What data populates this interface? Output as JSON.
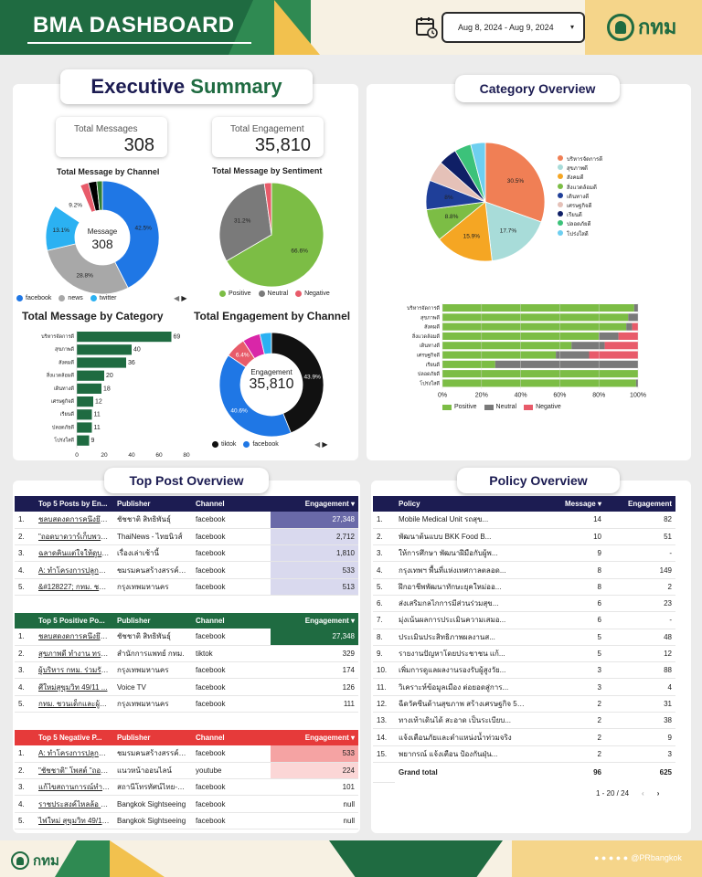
{
  "header": {
    "title": "BMA DASHBOARD",
    "date_range": "Aug 8, 2024 - Aug 9, 2024",
    "logo_text": "กทม"
  },
  "executive": {
    "title_a": "Executive",
    "title_b": "Summary",
    "kpis": [
      {
        "label": "Total Messages",
        "value": "308"
      },
      {
        "label": "Total Engagement",
        "value": "35,810"
      }
    ]
  },
  "colors": {
    "facebook": "#1f77e5",
    "news": "#a8a8a8",
    "twitter": "#2bb1f2",
    "positive": "#7cbd45",
    "neutral": "#7a7a7a",
    "negative": "#e85b6a",
    "dark_green": "#1f6b41",
    "navy": "#1c1c52"
  },
  "chart_data": [
    {
      "type": "pie",
      "title": "Total Message by Channel",
      "center_label": "Message",
      "center_value": "308",
      "slices": [
        {
          "name": "facebook",
          "value": 42.5,
          "color": "#1f77e5"
        },
        {
          "name": "news",
          "value": 28.8,
          "color": "#a8a8a8"
        },
        {
          "name": "twitter",
          "value": 13.1,
          "color": "#2bb1f2"
        },
        {
          "name": "",
          "value": 9.2,
          "color": "#ffffff"
        },
        {
          "name": "",
          "value": 2.4,
          "color": "#e85b6a"
        },
        {
          "name": "",
          "value": 2.4,
          "color": "#000000"
        },
        {
          "name": "",
          "value": 1.6,
          "color": "#2e7d32"
        }
      ],
      "labels": [
        "42.5%",
        "28.8%",
        "13.1%",
        "9.2%"
      ],
      "legend": [
        "facebook",
        "news",
        "twitter"
      ]
    },
    {
      "type": "pie",
      "title": "Total Message by Sentiment",
      "slices": [
        {
          "name": "Positive",
          "value": 66.6,
          "color": "#7cbd45"
        },
        {
          "name": "Neutral",
          "value": 31.2,
          "color": "#7a7a7a"
        },
        {
          "name": "Negative",
          "value": 2.2,
          "color": "#e85b6a"
        }
      ],
      "labels": [
        "66.6%",
        "31.2%"
      ],
      "legend": [
        "Positive",
        "Neutral",
        "Negative"
      ]
    },
    {
      "type": "bar",
      "title": "Total Message by Category",
      "categories": [
        "บริหารจัดการดี",
        "สุขภาพดี",
        "สังคมดี",
        "สิ่งแวดล้อมดี",
        "เดินทางดี",
        "เศรษฐกิจดี",
        "เรียนดี",
        "ปลอดภัยดี",
        "โปร่งใสดี"
      ],
      "values": [
        69,
        40,
        36,
        20,
        18,
        12,
        11,
        11,
        9
      ],
      "xticks": [
        "0",
        "20",
        "40",
        "60",
        "80"
      ],
      "xlim": [
        0,
        80
      ]
    },
    {
      "type": "pie",
      "title": "Total Engagement by Channel",
      "center_label": "Engagement",
      "center_value": "35,810",
      "slices": [
        {
          "name": "tiktok",
          "value": 43.9,
          "color": "#111111"
        },
        {
          "name": "facebook",
          "value": 40.6,
          "color": "#1f77e5"
        },
        {
          "name": "",
          "value": 6.4,
          "color": "#e85b6a"
        },
        {
          "name": "",
          "value": 5.5,
          "color": "#d926a8"
        },
        {
          "name": "",
          "value": 3.6,
          "color": "#2bb1f2"
        }
      ],
      "labels": [
        "43.9%",
        "40.6%",
        "6.4%"
      ],
      "legend": [
        "tiktok",
        "facebook"
      ]
    },
    {
      "type": "pie",
      "title": "Category Overview",
      "slices": [
        {
          "name": "บริหารจัดการดี",
          "value": 30.5,
          "color": "#f07f55"
        },
        {
          "name": "สุขภาพดี",
          "value": 17.7,
          "color": "#a8dcd9"
        },
        {
          "name": "สังคมดี",
          "value": 15.9,
          "color": "#f5a623"
        },
        {
          "name": "สิ่งแวดล้อมดี",
          "value": 8.8,
          "color": "#7cbd45"
        },
        {
          "name": "เดินทางดี",
          "value": 8.0,
          "color": "#1f3f99"
        },
        {
          "name": "เศรษฐกิจดี",
          "value": 5.6,
          "color": "#e5c1b8"
        },
        {
          "name": "เรียนดี",
          "value": 5.0,
          "color": "#0f1f66"
        },
        {
          "name": "ปลอดภัยดี",
          "value": 4.5,
          "color": "#3cc27a"
        },
        {
          "name": "โปร่งใสดี",
          "value": 4.0,
          "color": "#6ecff0"
        }
      ],
      "labels": [
        "30.5%",
        "17.7%",
        "15.9%",
        "8.8%",
        "8%"
      ]
    },
    {
      "type": "bar",
      "stacked": true,
      "categories": [
        "บริหารจัดการดี",
        "สุขภาพดี",
        "สังคมดี",
        "สิ่งแวดล้อมดี",
        "เดินทางดี",
        "เศรษฐกิจดี",
        "เรียนดี",
        "ปลอดภัยดี",
        "โปร่งใสดี"
      ],
      "series": [
        {
          "name": "Positive",
          "values": [
            98,
            95,
            94,
            80,
            66,
            58,
            27,
            100,
            99
          ]
        },
        {
          "name": "Neutral",
          "values": [
            2,
            5,
            3,
            10,
            17,
            17,
            73,
            0,
            1
          ]
        },
        {
          "name": "Negative",
          "values": [
            0,
            0,
            3,
            10,
            17,
            25,
            0,
            0,
            0
          ]
        }
      ],
      "xticks": [
        "0%",
        "20%",
        "40%",
        "60%",
        "80%",
        "100%"
      ],
      "xlim": [
        0,
        100
      ]
    }
  ],
  "category_overview": {
    "title": "Category Overview"
  },
  "top_post": {
    "title": "Top Post Overview"
  },
  "policy": {
    "title": "Policy Overview"
  },
  "top5_posts": {
    "headers": [
      "Top 5 Posts by En...",
      "Publisher",
      "Channel",
      "Engagement"
    ],
    "rows": [
      [
        "1.",
        "ชลบสดงดการคนึงยึดกันพ้อดลาร",
        "ชัชชาติ สิทธิพันธุ์",
        "facebook",
        "27,348"
      ],
      [
        "2.",
        "\"ถอดบาดวาร์เก็บพวราร\" \"ชัชชาต...",
        "ThaiNews - ไทยนิวส์",
        "facebook",
        "2,712"
      ],
      [
        "3.",
        "ฉลาดคินแต่ใจให้ดูบดคำยับได้ประ...",
        "เรื่องเล่าเช้านี้",
        "facebook",
        "1,810"
      ],
      [
        "4.",
        "A: ทำโครงการปลูกต้นไม้ล้าน...",
        "ชมรมคนสร้างสรรค์ไทยแผ่นฟูหู่",
        "facebook",
        "533"
      ],
      [
        "5.",
        "&#128227; กทม. ชวนร่ว...",
        "กรุงเทพมหานคร",
        "facebook",
        "513"
      ]
    ]
  },
  "top5_positive": {
    "headers": [
      "Top 5 Positive Po...",
      "Publisher",
      "Channel",
      "Engagement"
    ],
    "rows": [
      [
        "1.",
        "ชลบสดงดการคนึงยึดกันพ้อดลาร",
        "ชัชชาติ สิทธิพันธุ์",
        "facebook",
        "27,348"
      ],
      [
        "2.",
        "สุขภาพดี ทำงาน ทรงงาน...",
        "สำนักการแพทย์ กทม.",
        "tiktok",
        "329"
      ],
      [
        "3.",
        "ผู้บริหาร กทม. ร่วมรับฟังข้อเสนอ...",
        "กรุงเทพมหานคร",
        "facebook",
        "174"
      ],
      [
        "4.",
        "ศีใหม่สุขุมวิท 49/11 ...",
        "Voice TV",
        "facebook",
        "126"
      ],
      [
        "5.",
        "กทม. ชวนเด็กและผู้ปกครองร่วม...",
        "กรุงเทพมหานคร",
        "facebook",
        "111"
      ]
    ]
  },
  "top5_negative": {
    "headers": [
      "Top 5 Negative P...",
      "Publisher",
      "Channel",
      "Engagement"
    ],
    "rows": [
      [
        "1.",
        "A: ทำโครงการปลูกต้นไม้ล้าน...",
        "ชมรมคนสร้างสรรค์ไทยแผ่นฟูหู่",
        "facebook",
        "533"
      ],
      [
        "2.",
        "\"ชัชชาติ\" โพสต์ \"ถอดบาดวาร...",
        "แนวหน้าออนไลน์",
        "youtube",
        "224"
      ],
      [
        "3.",
        "แก้ไขสถานการณ์ทำงานหลัง...",
        "สถานีโทรทัศน์ไทย-Thai ...",
        "facebook",
        "101"
      ],
      [
        "4.",
        "ราชประสงค์ไหลล้อ เด็ก...",
        "Bangkok Sightseeing",
        "facebook",
        "null"
      ],
      [
        "5.",
        "ไฟใหม่ สุขุมวิท 49/1 เมื่อ...",
        "Bangkok Sightseeing",
        "facebook",
        "null"
      ]
    ]
  },
  "policy_table": {
    "headers": [
      "Policy",
      "Message",
      "Engagement"
    ],
    "rows": [
      [
        "1.",
        "Mobile Medical Unit รถสุข...",
        "14",
        "82"
      ],
      [
        "2.",
        "พัฒนาต้นแบบ BKK Food B...",
        "10",
        "51"
      ],
      [
        "3.",
        "ให้การศึกษา พัฒนาฝีมือกับผู้พ...",
        "9",
        "-"
      ],
      [
        "4.",
        "กรุงเทพฯ พื้นที่แห่งเทศกาลตลอด...",
        "8",
        "149"
      ],
      [
        "5.",
        "ฝึกอาชีพพัฒนาทักษะยุคใหม่ออ...",
        "8",
        "2"
      ],
      [
        "6.",
        "ส่งเสริมกลไกการมีส่วนร่วมสุข...",
        "6",
        "23"
      ],
      [
        "7.",
        "มุ่งเน้นผลการประเมินความเสมอ...",
        "6",
        "-"
      ],
      [
        "8.",
        "ประเมินประสิทธิภาพผลงานส...",
        "5",
        "48"
      ],
      [
        "9.",
        "รายงานปัญหาโดยประชาชน แก้...",
        "5",
        "12"
      ],
      [
        "10.",
        "เพิ่มการดูแลผลงานรองรับผู้สูงวัย...",
        "3",
        "88"
      ],
      [
        "11.",
        "วิเคราะห์ข้อมูลเมือง ต่อยอดสู่การ...",
        "3",
        "4"
      ],
      [
        "12.",
        "ฉีดวัคซีนด้านสุขภาพ สร้างเศรษฐกิจ 50 ...",
        "2",
        "31"
      ],
      [
        "13.",
        "ทางเท้าเดินได้ สะอาด เป็นระเบียบ...",
        "2",
        "38"
      ],
      [
        "14.",
        "แจ้งเตือนภัยและตำแหน่งน้ำท่วมจริง",
        "2",
        "9"
      ],
      [
        "15.",
        "พยากรณ์ แจ้งเตือน ป้องกันฝุ่น...",
        "2",
        "3"
      ]
    ],
    "total": [
      "Grand total",
      "96",
      "625"
    ],
    "pagination": "1 - 20 / 24"
  },
  "footer": {
    "logo_text": "กทม",
    "handle": "@PRbangkok"
  }
}
